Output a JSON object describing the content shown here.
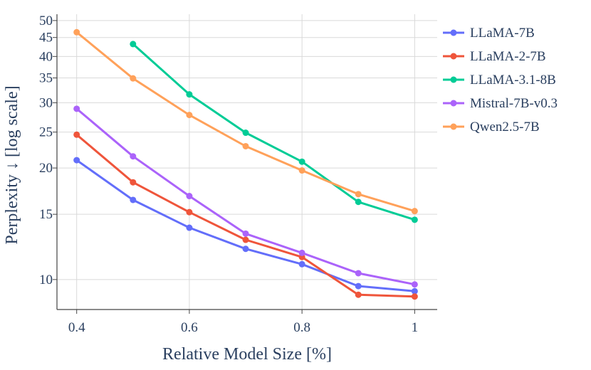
{
  "chart_data": {
    "type": "line",
    "title": "",
    "xlabel": "Relative Model Size [%]",
    "ylabel": "Perplexity ↓ [log scale]",
    "y_scale": "log",
    "xlim": [
      0.365,
      1.04
    ],
    "ylim": [
      8.3,
      52
    ],
    "x_ticks": [
      0.4,
      0.6,
      0.8,
      1
    ],
    "x_tick_labels": [
      "0.4",
      "0.6",
      "0.8",
      "1"
    ],
    "y_ticks": [
      10,
      15,
      20,
      25,
      30,
      35,
      40,
      45,
      50
    ],
    "y_tick_labels": [
      "10",
      "15",
      "20",
      "25",
      "30",
      "35",
      "40",
      "45",
      "50"
    ],
    "grid": true,
    "legend_position": "right",
    "series": [
      {
        "name": "LLaMA-7B",
        "color": "#636efa",
        "x": [
          0.4,
          0.5,
          0.6,
          0.7,
          0.8,
          0.9,
          1.0
        ],
        "values": [
          21.0,
          16.4,
          13.8,
          12.1,
          11.0,
          9.6,
          9.3
        ]
      },
      {
        "name": "LLaMA-2-7B",
        "color": "#ef553b",
        "x": [
          0.4,
          0.5,
          0.6,
          0.7,
          0.8,
          0.9,
          1.0
        ],
        "values": [
          24.6,
          18.3,
          15.2,
          12.8,
          11.5,
          9.1,
          9.0
        ]
      },
      {
        "name": "LLaMA-3.1-8B",
        "color": "#00cc96",
        "x": [
          0.5,
          0.6,
          0.7,
          0.8,
          0.9,
          1.0
        ],
        "values": [
          43.2,
          31.6,
          24.9,
          20.8,
          16.2,
          14.5
        ]
      },
      {
        "name": "Mistral-7B-v0.3",
        "color": "#ab63fa",
        "x": [
          0.4,
          0.5,
          0.6,
          0.7,
          0.8,
          0.9,
          1.0
        ],
        "values": [
          28.9,
          21.5,
          16.8,
          13.3,
          11.8,
          10.4,
          9.7
        ]
      },
      {
        "name": "Qwen2.5-7B",
        "color": "#ffa15a",
        "x": [
          0.4,
          0.5,
          0.6,
          0.7,
          0.8,
          0.9,
          1.0
        ],
        "values": [
          46.5,
          34.9,
          27.8,
          22.9,
          19.7,
          17.0,
          15.3
        ]
      }
    ]
  }
}
